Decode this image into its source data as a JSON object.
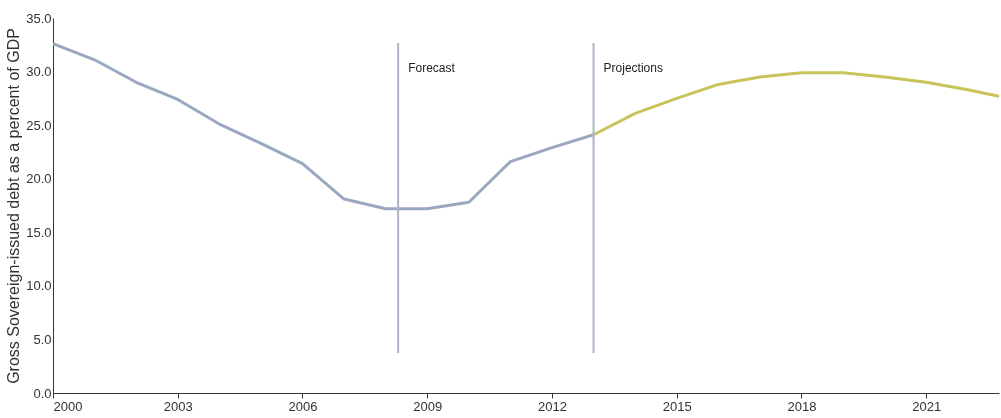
{
  "chart_data": {
    "type": "line",
    "ylabel": "Gross Sovereign-issued debt as a percent of GDP",
    "series": [
      {
        "color": "#9aa8bf",
        "x": [
          2000,
          2001,
          2002,
          2003,
          2004,
          2005,
          2006,
          2007,
          2008,
          2009,
          2010,
          2011,
          2012,
          2013
        ],
        "values": [
          32.6,
          31.1,
          29.0,
          27.4,
          25.1,
          23.3,
          21.4,
          18.1,
          17.2,
          17.2,
          17.8,
          21.6,
          22.9,
          24.1
        ]
      },
      {
        "color": "#c8c45a",
        "x": [
          2013,
          2014,
          2015,
          2016,
          2017,
          2018,
          2019,
          2020,
          2021,
          2022,
          2022.75
        ],
        "values": [
          24.1,
          26.1,
          27.5,
          28.8,
          29.5,
          29.9,
          29.9,
          29.5,
          29.0,
          28.3,
          27.7
        ]
      }
    ],
    "xlim": [
      2000,
      2022.75
    ],
    "xticks": [
      2000,
      2003,
      2006,
      2009,
      2012,
      2015,
      2018,
      2021
    ],
    "ylim": [
      0,
      35
    ],
    "yticks": [
      {
        "value": 0,
        "label": "0.0"
      },
      {
        "value": 5,
        "label": "5.0"
      },
      {
        "value": 10,
        "label": "10.0"
      },
      {
        "value": 15,
        "label": "15.0"
      },
      {
        "value": 20,
        "label": "20.0"
      },
      {
        "value": 25,
        "label": "25.0"
      },
      {
        "value": 30,
        "label": "30.0"
      },
      {
        "value": 35,
        "label": "35.0"
      }
    ],
    "ref_lines": [
      {
        "axis": "x",
        "value": 2008.3,
        "label": "Forecast",
        "color": "#a9b4c6"
      },
      {
        "axis": "x",
        "value": 2013.0,
        "label": "Projections",
        "color": "#a9b4c6"
      }
    ],
    "grid": false,
    "marker": "none",
    "line_style": "solid"
  }
}
